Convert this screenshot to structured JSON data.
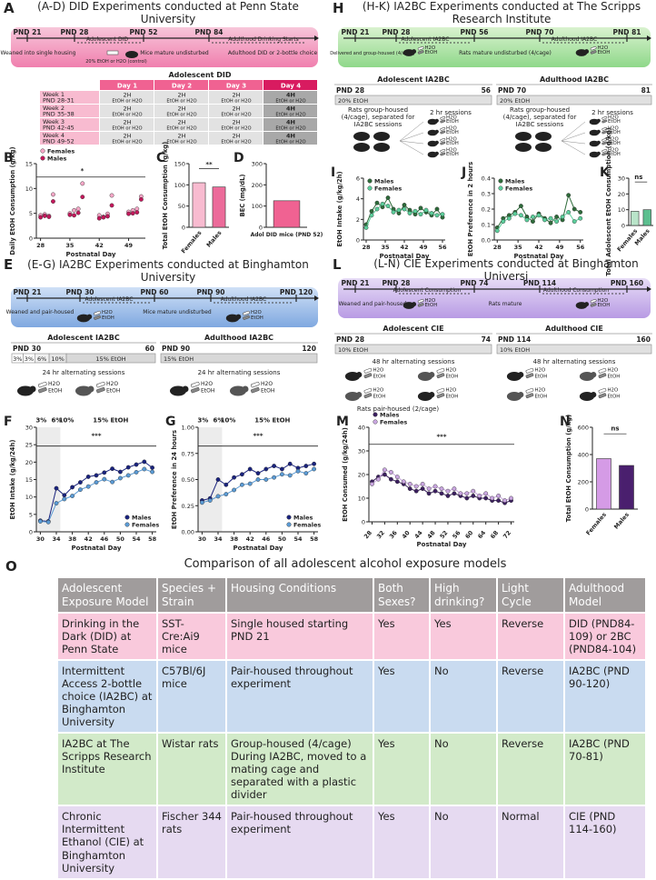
{
  "bottle_labels": [
    "H2O",
    "EtOH"
  ],
  "panels": {
    "A": {
      "letter": "A",
      "title": "(A-D) DID Experiments conducted at Penn State University",
      "timeline": [
        "PND 21",
        "PND 28",
        "Adolescent DID",
        "PND 52",
        "PND 84",
        "Adulthood Drinking Starts",
        "Weaned into single housing",
        "20% EtOH or H2O (control)",
        "Mice mature undisturbed",
        "Adulthood DID or 2-bottle choice"
      ],
      "table": {
        "title": "Adolescent DID",
        "header": [
          "Day 1",
          "Day 2",
          "Day 3",
          "Day 4"
        ],
        "rows": [
          {
            "week": "Week 1",
            "pnd": "PND 28-31",
            "cells": [
              [
                "2H",
                "EtOH or H2O"
              ],
              [
                "2H",
                "EtOH or H2O"
              ],
              [
                "2H",
                "EtOH or H2O"
              ],
              [
                "4H",
                "EtOH or H2O"
              ]
            ]
          },
          {
            "week": "Week 2",
            "pnd": "PND 35-38",
            "cells": [
              [
                "2H",
                "EtOH or H2O"
              ],
              [
                "2H",
                "EtOH or H2O"
              ],
              [
                "2H",
                "EtOH or H2O"
              ],
              [
                "4H",
                "EtOH or H2O"
              ]
            ]
          },
          {
            "week": "Week 3",
            "pnd": "PND 42-45",
            "cells": [
              [
                "2H",
                "EtOH or H2O"
              ],
              [
                "2H",
                "EtOH or H2O"
              ],
              [
                "2H",
                "EtOH or H2O"
              ],
              [
                "4H",
                "EtOH or H2O"
              ]
            ]
          },
          {
            "week": "Week 4",
            "pnd": "PND 49-52",
            "cells": [
              [
                "2H",
                "EtOH or H2O"
              ],
              [
                "2H",
                "EtOH or H2O"
              ],
              [
                "2H",
                "EtOH or H2O"
              ],
              [
                "4H",
                "EtOH or H2O"
              ]
            ]
          }
        ]
      }
    },
    "E": {
      "letter": "E",
      "title": "(E-G) IA2BC Experiments conducted at Binghamton University",
      "timeline": [
        "PND 21",
        "PND 30",
        "Adolescent IA2BC",
        "PND 60",
        "PND 90",
        "Adulthood IA2BC",
        "PND 120",
        "Weaned and pair-housed",
        "Mice mature undisturbed"
      ],
      "subpanels": [
        {
          "title": "Adolescent IA2BC",
          "start": "PND 30",
          "end": "60",
          "segments": [
            "3%",
            "3%",
            "6%",
            "10%",
            "15% EtOH"
          ],
          "note": "24 hr alternating sessions"
        },
        {
          "title": "Adulthood IA2BC",
          "start": "PND 90",
          "end": "120",
          "segments": [
            "15% EtOH"
          ],
          "note": "24 hr alternating sessions"
        }
      ]
    },
    "H": {
      "letter": "H",
      "title": "(H-K) IA2BC Experiments conducted at The Scripps Research Institute",
      "timeline": [
        "PND 21",
        "PND 28",
        "Adolescent IA2BC",
        "PND 56",
        "PND 70",
        "Adulthood IA2BC",
        "PND 81",
        "Delivered and group-housed (4/cage)",
        "Rats mature undisturbed (4/cage)"
      ],
      "subpanels": [
        {
          "title": "Adolescent IA2BC",
          "start": "PND 28",
          "end": "56",
          "segments": [
            "20% EtOH"
          ],
          "note": "2 hr sessions",
          "caption": "Rats group-housed (4/cage), separated for IA2BC sessions"
        },
        {
          "title": "Adulthood IA2BC",
          "start": "PND 70",
          "end": "81",
          "segments": [
            "20% EtOH"
          ],
          "note": "2 hr sessions",
          "caption": "Rats group-housed (4/cage), separated for IA2BC sessions"
        }
      ]
    },
    "L": {
      "letter": "L",
      "title": "(L-N) CIE Experiments conducted at Binghamton Universi",
      "timeline": [
        "PND 21",
        "PND 28",
        "Adolescent Consumption",
        "PND 74",
        "PND 114",
        "Adulthood Consumption",
        "PND 160",
        "Weaned and pair-housed",
        "Rats mature"
      ],
      "subpanels": [
        {
          "title": "Adolescent CIE",
          "start": "PND 28",
          "end": "74",
          "segments": [
            "10% EtOH"
          ],
          "note": "48 hr alternating sessions",
          "caption": "Rats pair-housed (2/cage)"
        },
        {
          "title": "Adulthood CIE",
          "start": "PND 114",
          "end": "160",
          "segments": [
            "10% EtOH"
          ],
          "note": "48 hr alternating sessions"
        }
      ]
    },
    "O": {
      "letter": "O",
      "title": "Comparison of all adolescent alcohol exposure models",
      "header": [
        "Adolescent Exposure Model",
        "Species + Strain",
        "Housing Conditions",
        "Both Sexes?",
        "High drinking?",
        "Light Cycle",
        "Adulthood Model"
      ],
      "rows": [
        [
          "Drinking in the Dark (DID) at Penn State",
          "SST-Cre:Ai9 mice",
          "Single housed starting PND 21",
          "Yes",
          "Yes",
          "Reverse",
          "DID (PND84-109) or 2BC (PND84-104)"
        ],
        [
          "Intermittent Access 2-bottle choice (IA2BC) at Binghamton University",
          "C57Bl/6J mice",
          "Pair-housed throughout experiment",
          "Yes",
          "No",
          "Reverse",
          "IA2BC (PND 90-120)"
        ],
        [
          "IA2BC at The Scripps Research Institute",
          "Wistar rats",
          "Group-housed (4/cage) During IA2BC, moved to a mating cage and separated with a plastic divider",
          "Yes",
          "No",
          "Reverse",
          "IA2BC (PND 70-81)"
        ],
        [
          "Chronic Intermittent Ethanol (CIE) at Binghamton University",
          "Fischer 344 rats",
          "Pair-housed throughout experiment",
          "Yes",
          "No",
          "Normal",
          "CIE (PND 114-160)"
        ]
      ],
      "row_colors": [
        "#f9c9dc",
        "#c9dbf0",
        "#d2eac9",
        "#e6daf1"
      ],
      "header_color": "#a09c9c"
    }
  },
  "chart_data": [
    {
      "letter": "B",
      "type": "scatter",
      "ylabel": "Daily EtOH Consumption (g/kg)",
      "xlabel": "Postnatal Day",
      "x": [
        28,
        29,
        30,
        31,
        35,
        36,
        37,
        38,
        42,
        43,
        44,
        45,
        49,
        50,
        51,
        52
      ],
      "xlim": [
        27,
        53
      ],
      "xticks": [
        28,
        35,
        42,
        49
      ],
      "ylim": [
        0,
        15
      ],
      "yticks": [
        0,
        5,
        10,
        15
      ],
      "legend": "upper left",
      "series": [
        {
          "name": "Females",
          "color": "#f4a6c6",
          "values": [
            4.6,
            4.8,
            4.5,
            8.8,
            5.0,
            5.6,
            5.9,
            11.0,
            4.6,
            4.3,
            4.9,
            8.6,
            5.3,
            5.6,
            5.9,
            8.4
          ]
        },
        {
          "name": "Males",
          "color": "#c2185b",
          "values": [
            4.2,
            4.5,
            4.3,
            7.4,
            4.7,
            4.6,
            5.1,
            8.3,
            4.0,
            4.2,
            4.4,
            6.6,
            4.9,
            5.0,
            5.2,
            7.8
          ]
        }
      ],
      "annotations": [
        "*"
      ]
    },
    {
      "letter": "C",
      "type": "bar",
      "ylabel": "Total EtOH Consumption (g/kg)",
      "categories": [
        "Females",
        "Males"
      ],
      "values": [
        105,
        95
      ],
      "colors": [
        "#f8bbd0",
        "#ec6b9a"
      ],
      "ylim": [
        0,
        150
      ],
      "yticks": [
        0,
        50,
        100,
        150
      ],
      "annotations": [
        "**"
      ]
    },
    {
      "letter": "D",
      "type": "bar",
      "ylabel": "BEC (mg/dL)",
      "categories": [
        "Adol DID mice (PND 52)"
      ],
      "values": [
        125
      ],
      "colors": [
        "#f06292"
      ],
      "ylim": [
        0,
        300
      ],
      "yticks": [
        0,
        100,
        200,
        300
      ]
    },
    {
      "letter": "F",
      "type": "line",
      "ylabel": "EtOH Intake (g/kg/24h)",
      "xlabel": "Postnatal Day",
      "x": [
        30,
        32,
        34,
        36,
        38,
        40,
        42,
        44,
        46,
        48,
        50,
        52,
        54,
        56,
        58
      ],
      "xlim": [
        29,
        59
      ],
      "xticks": [
        30,
        34,
        38,
        42,
        46,
        50,
        54,
        58
      ],
      "ylim": [
        0,
        30
      ],
      "yticks": [
        0,
        5,
        10,
        15,
        20,
        25,
        30
      ],
      "legend": "lower right",
      "series": [
        {
          "name": "Males",
          "color": "#1a237e",
          "values": [
            3.2,
            3.0,
            12.5,
            10.5,
            12.8,
            14.2,
            15.8,
            16.2,
            17.0,
            18.1,
            17.2,
            18.5,
            19.3,
            20.1,
            18.4
          ]
        },
        {
          "name": "Females",
          "color": "#5b9bd5",
          "values": [
            3.0,
            2.8,
            8.2,
            9.4,
            10.3,
            12.1,
            13.0,
            14.2,
            15.1,
            14.3,
            15.4,
            16.2,
            17.1,
            18.0,
            17.2
          ]
        }
      ],
      "annotations": [
        "3%",
        "6%",
        "10%",
        "15% EtOH",
        "***"
      ]
    },
    {
      "letter": "G",
      "type": "line",
      "ylabel": "EtOH Preference in 24 hours",
      "xlabel": "Postnatal Day",
      "x": [
        30,
        32,
        34,
        36,
        38,
        40,
        42,
        44,
        46,
        48,
        50,
        52,
        54,
        56,
        58
      ],
      "xlim": [
        29,
        59
      ],
      "xticks": [
        30,
        34,
        38,
        42,
        46,
        50,
        54,
        58
      ],
      "ylim": [
        0,
        1
      ],
      "yticks": [
        {
          "value": 0,
          "label": "0.00"
        },
        0.25,
        {
          "value": 0.5,
          "label": "0.50"
        },
        0.75,
        {
          "value": 1,
          "label": "1.00"
        }
      ],
      "legend": "lower right",
      "series": [
        {
          "name": "Males",
          "color": "#1a237e",
          "values": [
            0.3,
            0.32,
            0.5,
            0.45,
            0.52,
            0.55,
            0.6,
            0.56,
            0.6,
            0.63,
            0.6,
            0.65,
            0.61,
            0.63,
            0.65
          ]
        },
        {
          "name": "Females",
          "color": "#5b9bd5",
          "values": [
            0.28,
            0.3,
            0.34,
            0.36,
            0.4,
            0.45,
            0.46,
            0.5,
            0.5,
            0.52,
            0.55,
            0.54,
            0.58,
            0.56,
            0.6
          ]
        }
      ],
      "annotations": [
        "3%",
        "6%",
        "10%",
        "15% EtOH",
        "***"
      ]
    },
    {
      "letter": "I",
      "type": "line",
      "ylabel": "EtOH Intake (g/kg/2h)",
      "xlabel": "Postnatal Day",
      "x": [
        28,
        30,
        32,
        34,
        36,
        38,
        40,
        42,
        44,
        46,
        48,
        50,
        52,
        54,
        56
      ],
      "xlim": [
        27,
        57
      ],
      "xticks": [
        28,
        35,
        42,
        49,
        56
      ],
      "ylim": [
        0,
        6
      ],
      "yticks": [
        0,
        2,
        4,
        6
      ],
      "legend": "upper left",
      "series": [
        {
          "name": "Males",
          "color": "#2e6b3a",
          "values": [
            1.5,
            2.8,
            3.6,
            3.2,
            4.1,
            3.0,
            2.6,
            3.4,
            2.9,
            2.5,
            3.1,
            2.7,
            2.4,
            3.0,
            2.2
          ]
        },
        {
          "name": "Females",
          "color": "#5ccf9c",
          "values": [
            1.2,
            2.4,
            3.0,
            3.5,
            3.3,
            2.7,
            2.9,
            3.0,
            2.6,
            2.8,
            2.5,
            2.9,
            2.6,
            2.4,
            2.5
          ]
        }
      ]
    },
    {
      "letter": "J",
      "type": "line",
      "ylabel": "EtOH Preference in 2 hours",
      "xlabel": "Postnatal Day",
      "x": [
        28,
        30,
        32,
        34,
        36,
        38,
        40,
        42,
        44,
        46,
        48,
        50,
        52,
        54,
        56
      ],
      "xlim": [
        27,
        57
      ],
      "xticks": [
        28,
        35,
        42,
        49,
        56
      ],
      "ylim": [
        0,
        0.4
      ],
      "yticks": [
        {
          "value": 0,
          "label": "0.0"
        },
        0.1,
        0.2,
        0.3,
        0.4
      ],
      "legend": "upper left",
      "series": [
        {
          "name": "Males",
          "color": "#2e6b3a",
          "values": [
            0.08,
            0.14,
            0.16,
            0.18,
            0.22,
            0.15,
            0.12,
            0.17,
            0.14,
            0.11,
            0.15,
            0.13,
            0.29,
            0.2,
            0.18
          ]
        },
        {
          "name": "Females",
          "color": "#5ccf9c",
          "values": [
            0.06,
            0.12,
            0.14,
            0.17,
            0.16,
            0.13,
            0.15,
            0.16,
            0.13,
            0.14,
            0.12,
            0.15,
            0.18,
            0.12,
            0.14
          ]
        }
      ]
    },
    {
      "letter": "K",
      "type": "bar",
      "ylabel": "Total Adolescent EtOH Consumption (g/kg)",
      "categories": [
        "Females",
        "Males"
      ],
      "values": [
        9,
        10
      ],
      "colors": [
        "#b9e4c9",
        "#5cbf8f"
      ],
      "ylim": [
        0,
        30
      ],
      "yticks": [
        0,
        10,
        20,
        30
      ],
      "annotations": [
        "ns"
      ]
    },
    {
      "letter": "M",
      "type": "line",
      "ylabel": "EtOH Consumed (g/kg/24h)",
      "xlabel": "Postnatal Day",
      "x": [
        28,
        30,
        32,
        34,
        36,
        38,
        40,
        42,
        44,
        46,
        48,
        50,
        52,
        54,
        56,
        58,
        60,
        62,
        64,
        66,
        68,
        70,
        72
      ],
      "xlim": [
        27,
        73
      ],
      "xticks": [
        28,
        32,
        36,
        40,
        44,
        48,
        52,
        56,
        60,
        64,
        68,
        72
      ],
      "ylim": [
        0,
        40
      ],
      "yticks": [
        0,
        10,
        20,
        30,
        40
      ],
      "legend": "upper left",
      "series": [
        {
          "name": "Males",
          "color": "#3b1f5f",
          "values": [
            17,
            19,
            20,
            18,
            17,
            16,
            14,
            13,
            14,
            12,
            13,
            12,
            11,
            12,
            11,
            10,
            11,
            10,
            10,
            9,
            9,
            8,
            9
          ]
        },
        {
          "name": "Females",
          "color": "#c9a6e0",
          "values": [
            16,
            18,
            22,
            21,
            19,
            17,
            16,
            15,
            16,
            14,
            15,
            14,
            13,
            14,
            12,
            12,
            13,
            11,
            12,
            10,
            11,
            9,
            10
          ]
        }
      ],
      "annotations": [
        "***"
      ]
    },
    {
      "letter": "N",
      "type": "bar",
      "ylabel": "Total EtOH Consumption (g/kg)",
      "categories": [
        "Females",
        "Males"
      ],
      "values": [
        370,
        320
      ],
      "colors": [
        "#d59be6",
        "#4a1f6e"
      ],
      "ylim": [
        0,
        600
      ],
      "yticks": [
        0,
        200,
        400,
        600
      ],
      "annotations": [
        "ns"
      ]
    }
  ]
}
